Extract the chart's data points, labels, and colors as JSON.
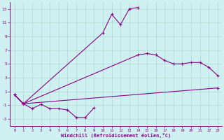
{
  "xlabel": "Windchill (Refroidissement éolien,°C)",
  "background_color": "#cef0f0",
  "grid_color": "#b0d8d0",
  "line_color": "#880088",
  "xlim": [
    -0.5,
    23.5
  ],
  "ylim": [
    -4,
    14
  ],
  "xticks": [
    0,
    1,
    2,
    3,
    4,
    5,
    6,
    7,
    8,
    9,
    10,
    11,
    12,
    13,
    14,
    15,
    16,
    17,
    18,
    19,
    20,
    21,
    22,
    23
  ],
  "yticks": [
    -3,
    -1,
    1,
    3,
    5,
    7,
    9,
    11,
    13
  ],
  "curves": [
    {
      "x": [
        0,
        1,
        2,
        3,
        4,
        5,
        6,
        7,
        8,
        9
      ],
      "y": [
        0.5,
        -0.8,
        -1.5,
        -0.9,
        -1.5,
        -1.5,
        -1.7,
        -2.8,
        -2.8,
        -1.4
      ]
    },
    {
      "x": [
        0,
        1,
        10,
        11,
        12,
        13,
        14
      ],
      "y": [
        0.5,
        -0.8,
        9.5,
        12.2,
        10.7,
        13.0,
        13.2
      ]
    },
    {
      "x": [
        0,
        1,
        14,
        15,
        16,
        17,
        18,
        19,
        20,
        21,
        22,
        23
      ],
      "y": [
        0.5,
        -0.8,
        6.3,
        6.5,
        6.3,
        5.5,
        5.0,
        5.0,
        5.2,
        5.2,
        4.5,
        3.3
      ]
    },
    {
      "x": [
        0,
        1,
        23
      ],
      "y": [
        0.5,
        -0.8,
        1.5
      ]
    }
  ]
}
